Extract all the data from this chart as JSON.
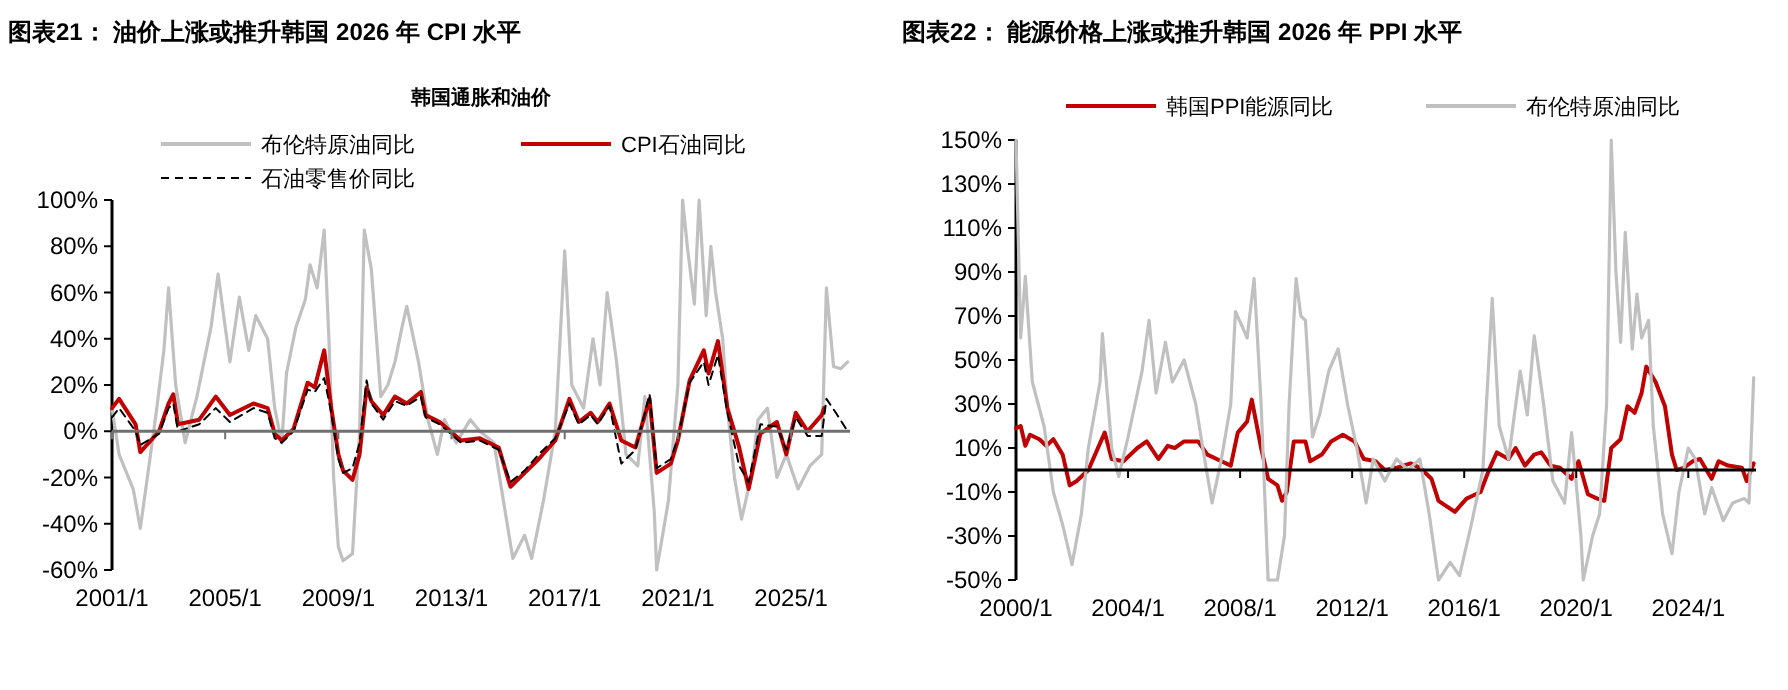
{
  "chart_data": [
    {
      "type": "line",
      "title": "图表21：  油价上涨或推升韩国 2026 年 CPI 水平",
      "subtitle": "韩国通胀和油价",
      "legend": "top",
      "grid": false,
      "xlim": [
        "2001-01",
        "2027-02"
      ],
      "xticks": [
        {
          "value": "2001-01",
          "label": "2001/1"
        },
        {
          "value": "2005-01",
          "label": "2005/1"
        },
        {
          "value": "2009-01",
          "label": "2009/1"
        },
        {
          "value": "2013-01",
          "label": "2013/1"
        },
        {
          "value": "2017-01",
          "label": "2017/1"
        },
        {
          "value": "2021-01",
          "label": "2021/1"
        },
        {
          "value": "2025-01",
          "label": "2025/1"
        }
      ],
      "ylim": [
        -60,
        100
      ],
      "yticks": [
        {
          "value": -60,
          "label": "-60%"
        },
        {
          "value": -40,
          "label": "-40%"
        },
        {
          "value": -20,
          "label": "-20%"
        },
        {
          "value": 0,
          "label": "0%"
        },
        {
          "value": 20,
          "label": "20%"
        },
        {
          "value": 40,
          "label": "40%"
        },
        {
          "value": 60,
          "label": "60%"
        },
        {
          "value": 80,
          "label": "80%"
        },
        {
          "value": 100,
          "label": "100%"
        }
      ],
      "ref_lines": [
        {
          "axis": "y",
          "value": 0,
          "color": "#707070"
        }
      ],
      "series": [
        {
          "name": "布伦特原油同比",
          "color": "#c0c0c0",
          "line_style": "solid",
          "x": [
            "2001-01",
            "2001-04",
            "2001-10",
            "2002-01",
            "2002-04",
            "2002-08",
            "2002-11",
            "2003-01",
            "2003-04",
            "2003-08",
            "2004-01",
            "2004-07",
            "2004-10",
            "2005-03",
            "2005-07",
            "2005-11",
            "2006-02",
            "2006-07",
            "2006-10",
            "2007-01",
            "2007-03",
            "2007-07",
            "2007-11",
            "2008-01",
            "2008-04",
            "2008-07",
            "2008-09",
            "2008-11",
            "2009-01",
            "2009-03",
            "2009-07",
            "2009-10",
            "2009-12",
            "2010-03",
            "2010-07",
            "2010-10",
            "2011-01",
            "2011-04",
            "2011-06",
            "2011-11",
            "2012-03",
            "2012-07",
            "2012-10",
            "2013-03",
            "2013-09",
            "2014-01",
            "2014-07",
            "2014-11",
            "2015-03",
            "2015-08",
            "2015-11",
            "2016-04",
            "2016-09",
            "2017-01",
            "2017-04",
            "2017-09",
            "2018-01",
            "2018-04",
            "2018-07",
            "2018-11",
            "2019-03",
            "2019-08",
            "2019-11",
            "2020-03",
            "2020-04",
            "2020-09",
            "2021-01",
            "2021-03",
            "2021-05",
            "2021-08",
            "2021-10",
            "2022-01",
            "2022-03",
            "2022-05",
            "2022-08",
            "2022-10",
            "2023-01",
            "2023-04",
            "2023-08",
            "2023-11",
            "2024-03",
            "2024-07",
            "2024-11",
            "2025-04",
            "2025-09",
            "2026-02",
            "2026-04",
            "2026-07",
            "2026-10",
            "2027-01"
          ],
          "values": [
            10,
            -10,
            -25,
            -42,
            -20,
            10,
            35,
            62,
            20,
            -5,
            15,
            45,
            68,
            30,
            58,
            35,
            50,
            40,
            10,
            -5,
            25,
            45,
            57,
            72,
            62,
            87,
            40,
            -20,
            -50,
            -56,
            -53,
            0,
            87,
            70,
            15,
            20,
            30,
            45,
            54,
            30,
            5,
            -10,
            5,
            -5,
            5,
            0,
            -5,
            -30,
            -55,
            -45,
            -55,
            -30,
            0,
            78,
            20,
            10,
            40,
            20,
            60,
            30,
            -10,
            -15,
            15,
            -35,
            -60,
            -30,
            20,
            100,
            80,
            55,
            100,
            50,
            80,
            60,
            40,
            10,
            -20,
            -38,
            -20,
            5,
            10,
            -20,
            -10,
            -25,
            -15,
            -10,
            62,
            28,
            27,
            30
          ]
        },
        {
          "name": "CPI石油同比",
          "color": "#c00000",
          "line_style": "solid",
          "x": [
            "2001-01",
            "2001-04",
            "2001-11",
            "2002-01",
            "2002-09",
            "2003-01",
            "2003-03",
            "2003-05",
            "2004-02",
            "2004-09",
            "2005-03",
            "2006-01",
            "2006-07",
            "2006-10",
            "2007-01",
            "2007-06",
            "2007-12",
            "2008-03",
            "2008-07",
            "2008-10",
            "2009-01",
            "2009-03",
            "2009-07",
            "2009-10",
            "2010-01",
            "2010-03",
            "2010-08",
            "2011-01",
            "2011-06",
            "2011-12",
            "2012-02",
            "2012-08",
            "2013-05",
            "2014-01",
            "2014-09",
            "2015-02",
            "2015-08",
            "2016-02",
            "2016-09",
            "2017-03",
            "2017-07",
            "2017-12",
            "2018-03",
            "2018-08",
            "2019-01",
            "2019-07",
            "2020-01",
            "2020-04",
            "2020-10",
            "2021-01",
            "2021-06",
            "2021-12",
            "2022-02",
            "2022-06",
            "2022-10",
            "2023-03",
            "2023-07",
            "2023-12",
            "2024-07",
            "2024-11",
            "2025-03",
            "2025-08",
            "2026-02",
            "2026-03"
          ],
          "values": [
            10,
            14,
            3,
            -9,
            0,
            12,
            16,
            3,
            5,
            15,
            7,
            12,
            10,
            -1,
            -4,
            1,
            21,
            19,
            35,
            10,
            -10,
            -17,
            -21,
            -10,
            19,
            13,
            7,
            15,
            12,
            17,
            7,
            4,
            -4,
            -3,
            -7,
            -24,
            -18,
            -12,
            -4,
            14,
            4,
            8,
            4,
            12,
            -4,
            -7,
            14,
            -18,
            -14,
            -4,
            22,
            35,
            25,
            39,
            10,
            -7,
            -25,
            -1,
            4,
            -10,
            8,
            0,
            7,
            10
          ]
        },
        {
          "name": "石油零售价同比",
          "color": "#000000",
          "line_style": "dashed",
          "x": [
            "2001-01",
            "2001-04",
            "2001-11",
            "2002-01",
            "2002-09",
            "2003-01",
            "2003-03",
            "2003-05",
            "2004-02",
            "2004-09",
            "2005-03",
            "2006-01",
            "2006-07",
            "2006-10",
            "2007-01",
            "2007-06",
            "2007-12",
            "2008-03",
            "2008-07",
            "2008-10",
            "2009-01",
            "2009-03",
            "2009-07",
            "2009-10",
            "2010-01",
            "2010-03",
            "2010-08",
            "2011-01",
            "2011-06",
            "2011-12",
            "2012-02",
            "2012-08",
            "2013-05",
            "2014-01",
            "2014-09",
            "2015-02",
            "2015-08",
            "2016-02",
            "2016-09",
            "2017-03",
            "2017-07",
            "2017-12",
            "2018-03",
            "2018-08",
            "2019-01",
            "2019-07",
            "2020-01",
            "2020-04",
            "2020-10",
            "2021-01",
            "2021-06",
            "2021-12",
            "2022-02",
            "2022-06",
            "2022-10",
            "2023-03",
            "2023-07",
            "2023-12",
            "2024-07",
            "2024-11",
            "2025-03",
            "2025-08",
            "2026-02",
            "2026-04",
            "2026-08",
            "2027-01"
          ],
          "values": [
            6,
            10,
            0,
            -6,
            -1,
            10,
            12,
            0,
            3,
            10,
            4,
            10,
            8,
            -3,
            -5,
            0,
            18,
            17,
            23,
            8,
            -12,
            -18,
            -16,
            -5,
            22,
            12,
            5,
            13,
            11,
            15,
            6,
            3,
            -5,
            -4,
            -8,
            -22,
            -17,
            -10,
            -3,
            12,
            3,
            7,
            3,
            11,
            -14,
            -8,
            16,
            -16,
            -12,
            -3,
            21,
            30,
            20,
            33,
            8,
            -15,
            -22,
            3,
            2,
            -8,
            6,
            -2,
            -2,
            14,
            8,
            0
          ]
        }
      ]
    },
    {
      "type": "line",
      "title": "图表22：  能源价格上涨或推升韩国 2026 年 PPI 水平",
      "legend": "top",
      "grid": false,
      "xlim": [
        "2000-01",
        "2026-06"
      ],
      "xticks": [
        {
          "value": "2000-01",
          "label": "2000/1"
        },
        {
          "value": "2004-01",
          "label": "2004/1"
        },
        {
          "value": "2008-01",
          "label": "2008/1"
        },
        {
          "value": "2012-01",
          "label": "2012/1"
        },
        {
          "value": "2016-01",
          "label": "2016/1"
        },
        {
          "value": "2020-01",
          "label": "2020/1"
        },
        {
          "value": "2024-01",
          "label": "2024/1"
        }
      ],
      "ylim": [
        -50,
        150
      ],
      "yticks": [
        {
          "value": -50,
          "label": "-50%"
        },
        {
          "value": -30,
          "label": "-30%"
        },
        {
          "value": -10,
          "label": "-10%"
        },
        {
          "value": 10,
          "label": "10%"
        },
        {
          "value": 30,
          "label": "30%"
        },
        {
          "value": 50,
          "label": "50%"
        },
        {
          "value": 70,
          "label": "70%"
        },
        {
          "value": 90,
          "label": "90%"
        },
        {
          "value": 110,
          "label": "110%"
        },
        {
          "value": 130,
          "label": "130%"
        },
        {
          "value": 150,
          "label": "150%"
        }
      ],
      "ref_lines": [
        {
          "axis": "y",
          "value": 0,
          "color": "#000000"
        }
      ],
      "series": [
        {
          "name": "韩国PPI能源同比",
          "color": "#c00000",
          "line_style": "solid",
          "x": [
            "2000-01",
            "2000-03",
            "2000-05",
            "2000-07",
            "2000-11",
            "2001-02",
            "2001-05",
            "2001-09",
            "2001-12",
            "2002-03",
            "2002-08",
            "2003-03",
            "2003-06",
            "2003-11",
            "2004-05",
            "2004-09",
            "2005-02",
            "2005-06",
            "2005-09",
            "2006-01",
            "2006-07",
            "2006-11",
            "2007-05",
            "2007-09",
            "2007-12",
            "2008-04",
            "2008-06",
            "2008-10",
            "2009-01",
            "2009-05",
            "2009-07",
            "2009-09",
            "2009-12",
            "2010-05",
            "2010-07",
            "2010-12",
            "2011-04",
            "2011-09",
            "2012-02",
            "2012-06",
            "2012-11",
            "2013-03",
            "2013-08",
            "2014-02",
            "2014-06",
            "2014-11",
            "2015-02",
            "2015-09",
            "2016-02",
            "2016-08",
            "2016-12",
            "2017-03",
            "2017-08",
            "2017-11",
            "2018-03",
            "2018-07",
            "2018-10",
            "2019-02",
            "2019-06",
            "2019-11",
            "2020-02",
            "2020-06",
            "2020-10",
            "2021-01",
            "2021-04",
            "2021-08",
            "2021-11",
            "2022-02",
            "2022-05",
            "2022-07",
            "2022-11",
            "2023-03",
            "2023-06",
            "2023-08",
            "2023-11",
            "2024-03",
            "2024-06",
            "2024-11",
            "2025-02",
            "2025-06",
            "2025-12",
            "2026-02",
            "2026-05"
          ],
          "values": [
            19,
            20,
            11,
            16,
            14,
            11,
            14,
            7,
            -7,
            -5,
            0,
            17,
            5,
            4,
            10,
            13,
            5,
            11,
            10,
            13,
            13,
            7,
            4,
            2,
            17,
            22,
            32,
            10,
            -4,
            -7,
            -14,
            -10,
            13,
            13,
            4,
            7,
            13,
            16,
            13,
            5,
            4,
            0,
            1,
            3,
            1,
            -4,
            -14,
            -19,
            -13,
            -10,
            1,
            8,
            5,
            10,
            2,
            7,
            8,
            2,
            1,
            -4,
            4,
            -11,
            -13,
            -14,
            10,
            14,
            29,
            26,
            35,
            47,
            40,
            29,
            7,
            0,
            1,
            4,
            5,
            -4,
            4,
            2,
            1,
            -5,
            3
          ]
        },
        {
          "name": "布伦特原油同比",
          "color": "#c0c0c0",
          "line_style": "solid",
          "x": [
            "2000-01",
            "2000-03",
            "2000-05",
            "2000-08",
            "2001-01",
            "2001-05",
            "2001-09",
            "2002-01",
            "2002-05",
            "2002-08",
            "2003-01",
            "2003-02",
            "2003-06",
            "2003-09",
            "2004-01",
            "2004-07",
            "2004-10",
            "2005-01",
            "2005-05",
            "2005-08",
            "2006-01",
            "2006-06",
            "2006-09",
            "2007-01",
            "2007-05",
            "2007-09",
            "2007-11",
            "2008-02",
            "2008-04",
            "2008-07",
            "2008-10",
            "2009-01",
            "2009-05",
            "2009-08",
            "2009-10",
            "2010-01",
            "2010-03",
            "2010-05",
            "2010-08",
            "2010-11",
            "2011-03",
            "2011-07",
            "2011-11",
            "2012-03",
            "2012-07",
            "2012-10",
            "2013-03",
            "2013-08",
            "2014-01",
            "2014-06",
            "2014-10",
            "2015-02",
            "2015-07",
            "2015-11",
            "2016-04",
            "2016-09",
            "2017-01",
            "2017-04",
            "2017-08",
            "2018-01",
            "2018-04",
            "2018-07",
            "2018-11",
            "2019-03",
            "2019-08",
            "2019-11",
            "2020-03",
            "2020-04",
            "2020-08",
            "2020-11",
            "2021-02",
            "2021-04",
            "2021-06",
            "2021-08",
            "2021-10",
            "2022-01",
            "2022-03",
            "2022-05",
            "2022-08",
            "2022-10",
            "2023-02",
            "2023-06",
            "2023-09",
            "2024-01",
            "2024-04",
            "2024-08",
            "2024-11",
            "2025-04",
            "2025-08",
            "2026-01",
            "2026-03",
            "2026-05"
          ],
          "values": [
            150,
            60,
            88,
            40,
            20,
            -10,
            -25,
            -43,
            -20,
            10,
            40,
            62,
            10,
            -3,
            15,
            45,
            68,
            35,
            58,
            40,
            50,
            30,
            10,
            -15,
            5,
            30,
            72,
            65,
            60,
            87,
            30,
            -50,
            -50,
            -30,
            30,
            87,
            70,
            68,
            15,
            25,
            45,
            55,
            30,
            10,
            -15,
            5,
            -5,
            5,
            0,
            5,
            -20,
            -50,
            -42,
            -48,
            -25,
            0,
            78,
            20,
            5,
            45,
            25,
            61,
            30,
            -5,
            -15,
            17,
            -30,
            -50,
            -30,
            -20,
            30,
            150,
            90,
            58,
            108,
            55,
            80,
            60,
            68,
            20,
            -20,
            -38,
            -10,
            10,
            5,
            -20,
            -8,
            -23,
            -15,
            -13,
            -15,
            42
          ]
        }
      ]
    }
  ]
}
